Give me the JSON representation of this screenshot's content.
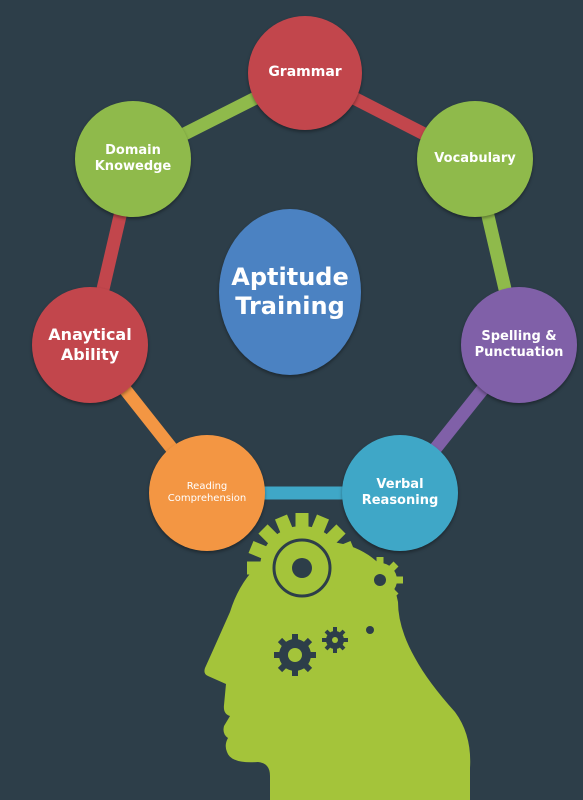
{
  "colors": {
    "background": "#2d3e49",
    "red": "#c2464c",
    "green": "#8fba4b",
    "purple": "#8060a8",
    "teal": "#3fa7c7",
    "orange": "#f39643",
    "blue": "#4b82c2",
    "head": "#a4c43a"
  },
  "center": {
    "line1": "Aptitude",
    "line2": "Training"
  },
  "nodes": {
    "grammar": {
      "line1": "Grammar",
      "line2": ""
    },
    "vocabulary": {
      "line1": "Vocabulary",
      "line2": ""
    },
    "spelling": {
      "line1": "Spelling &",
      "line2": "Punctuation"
    },
    "verbal": {
      "line1": "Verbal",
      "line2": "Reasoning"
    },
    "reading": {
      "line1": "Reading",
      "line2": "Comprehension"
    },
    "analytical": {
      "line1": "Anaytical",
      "line2": "Ability"
    },
    "domain": {
      "line1": "Domain",
      "line2": "Knowedge"
    }
  }
}
